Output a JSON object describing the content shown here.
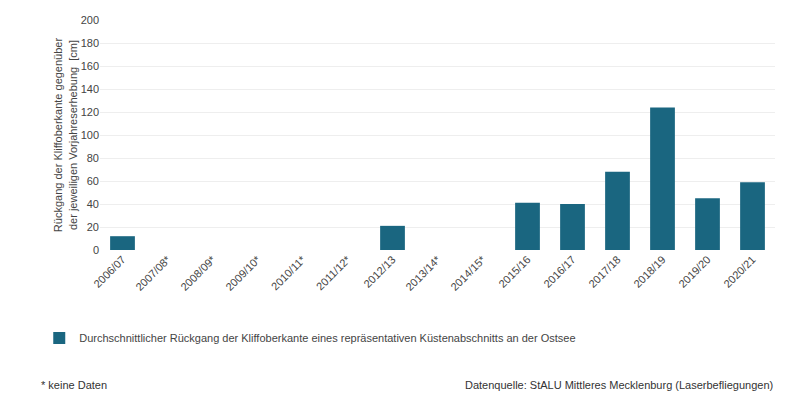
{
  "chart_data": {
    "type": "bar",
    "ylabel": "Rückgang der Kliffoberkante gegenüber\nder jeweiligen Vorjahreserhebung  [cm]",
    "categories": [
      "2006/07",
      "2007/08*",
      "2008/09*",
      "2009/10*",
      "2010/11*",
      "2011/12*",
      "2012/13",
      "2013/14*",
      "2014/15*",
      "2015/16",
      "2016/17",
      "2017/18",
      "2018/19",
      "2019/20",
      "2020/21"
    ],
    "series": [
      {
        "name": "Durchschnittlicher Rückgang der Kliffoberkante eines repräsentativen Küstenabschnitts an der Ostsee",
        "color": "#1a6680",
        "values": [
          12,
          0,
          0,
          0,
          0,
          0,
          21,
          0,
          0,
          41,
          40,
          68,
          124,
          45,
          59
        ]
      }
    ],
    "ylim": [
      0,
      200
    ],
    "yticks": [
      0,
      20,
      40,
      60,
      80,
      100,
      120,
      140,
      160,
      180,
      200
    ],
    "grid": true,
    "legend": "bottom",
    "annotations": [
      "* keine Daten",
      "Datenquelle: StALU Mittleres Mecklenburg (Laserbefliegungen)"
    ]
  }
}
